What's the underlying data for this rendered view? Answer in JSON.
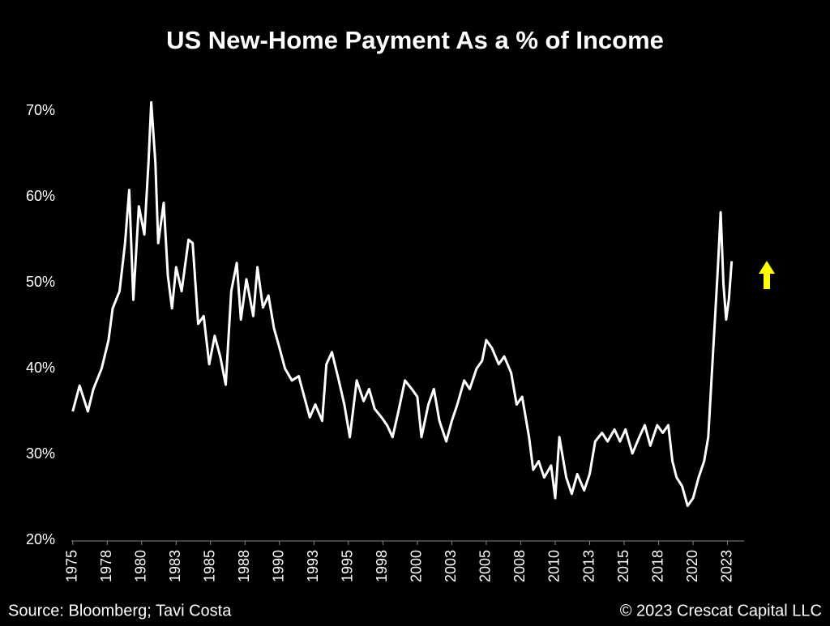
{
  "chart_data": {
    "type": "line",
    "title": "US New-Home Payment As a % of Income",
    "source": "Source: Bloomberg; Tavi Costa",
    "copyright": "© 2023 Crescat Capital LLC",
    "xlim": [
      1974.9,
      2023.7
    ],
    "ylim": [
      20,
      70
    ],
    "xticks": [
      1975,
      {
        "value": 1977.5,
        "label": "1978"
      },
      1980,
      {
        "value": 1982.5,
        "label": "1983"
      },
      1985,
      {
        "value": 1987.5,
        "label": "1988"
      },
      1990,
      {
        "value": 1992.5,
        "label": "1993"
      },
      1995,
      {
        "value": 1997.5,
        "label": "1998"
      },
      2000,
      {
        "value": 2002.5,
        "label": "2003"
      },
      2005,
      {
        "value": 2007.5,
        "label": "2008"
      },
      2010,
      {
        "value": 2012.5,
        "label": "2013"
      },
      2015,
      {
        "value": 2017.5,
        "label": "2018"
      },
      2020,
      {
        "value": 2022.5,
        "label": "2023"
      }
    ],
    "yticks": [
      {
        "value": 20,
        "label": "20%"
      },
      {
        "value": 30,
        "label": "30%"
      },
      {
        "value": 40,
        "label": "40%"
      },
      {
        "value": 50,
        "label": "50%"
      },
      {
        "value": 60,
        "label": "60%"
      },
      {
        "value": 70,
        "label": "70%"
      }
    ],
    "grid": false,
    "x": [
      1975.0,
      1975.5,
      1976.1,
      1976.5,
      1977.1,
      1977.6,
      1977.9,
      1978.4,
      1978.8,
      1979.1,
      1979.4,
      1979.8,
      1980.2,
      1980.5,
      1980.7,
      1981.0,
      1981.2,
      1981.6,
      1981.9,
      1982.2,
      1982.5,
      1982.9,
      1983.4,
      1983.7,
      1984.1,
      1984.5,
      1984.9,
      1985.3,
      1985.7,
      1986.1,
      1986.5,
      1986.9,
      1987.2,
      1987.6,
      1988.1,
      1988.4,
      1988.8,
      1989.2,
      1989.6,
      1990.0,
      1990.4,
      1990.9,
      1991.4,
      1991.8,
      1992.2,
      1992.6,
      1993.1,
      1993.4,
      1993.8,
      1994.3,
      1994.7,
      1995.1,
      1995.6,
      1996.1,
      1996.5,
      1996.9,
      1997.4,
      1997.8,
      1998.2,
      1998.6,
      1999.1,
      1999.6,
      2000.0,
      2000.3,
      2000.8,
      2001.2,
      2001.6,
      2002.1,
      2002.5,
      2002.9,
      2003.4,
      2003.8,
      2004.3,
      2004.7,
      2005.0,
      2005.4,
      2005.9,
      2006.3,
      2006.8,
      2007.2,
      2007.6,
      2008.1,
      2008.4,
      2008.8,
      2009.2,
      2009.7,
      2010.0,
      2010.3,
      2010.8,
      2011.2,
      2011.6,
      2012.1,
      2012.5,
      2012.9,
      2013.4,
      2013.8,
      2014.3,
      2014.7,
      2015.1,
      2015.6,
      2016.1,
      2016.5,
      2016.9,
      2017.4,
      2017.8,
      2018.2,
      2018.5,
      2018.8,
      2019.2,
      2019.6,
      2020.0,
      2020.4,
      2020.8,
      2021.1,
      2021.4,
      2021.6,
      2021.8,
      2022.0,
      2022.2,
      2022.4,
      2022.6,
      2022.8
    ],
    "series": [
      {
        "color": "#ffffff",
        "values": [
          35,
          38,
          35,
          37.6,
          40,
          43.3,
          47,
          49,
          54.6,
          60.8,
          48,
          58.9,
          55.6,
          64,
          71,
          64,
          54.6,
          59.3,
          50.8,
          47,
          51.8,
          49,
          55,
          54.6,
          45.2,
          46.1,
          40.5,
          43.8,
          41.4,
          38.1,
          49,
          52.3,
          45.7,
          50.4,
          46.1,
          51.8,
          47.1,
          48.5,
          44.7,
          42.4,
          40,
          38.6,
          39.1,
          36.7,
          34.3,
          35.8,
          33.9,
          40.5,
          41.9,
          38.6,
          35.8,
          32,
          38.6,
          36.2,
          37.6,
          35.3,
          34.3,
          33.4,
          32,
          34.8,
          38.6,
          37.6,
          36.7,
          32,
          35.8,
          37.6,
          33.9,
          31.5,
          33.9,
          35.8,
          38.6,
          37.6,
          40,
          40.9,
          43.3,
          42.4,
          40.5,
          41.4,
          39.5,
          35.8,
          36.7,
          32,
          28.2,
          29.2,
          27.3,
          28.7,
          24.9,
          32,
          27.3,
          25.4,
          27.7,
          25.8,
          27.7,
          31.5,
          32.5,
          31.5,
          32.9,
          31.5,
          32.9,
          30.1,
          32,
          33.4,
          31,
          33.4,
          32.5,
          33.4,
          29.2,
          27.3,
          26.3,
          24,
          24.9,
          27.3,
          29.2,
          32,
          40.5,
          46.1,
          51.8,
          58.2,
          49.9,
          45.7,
          48.1,
          52.5
        ]
      }
    ]
  }
}
